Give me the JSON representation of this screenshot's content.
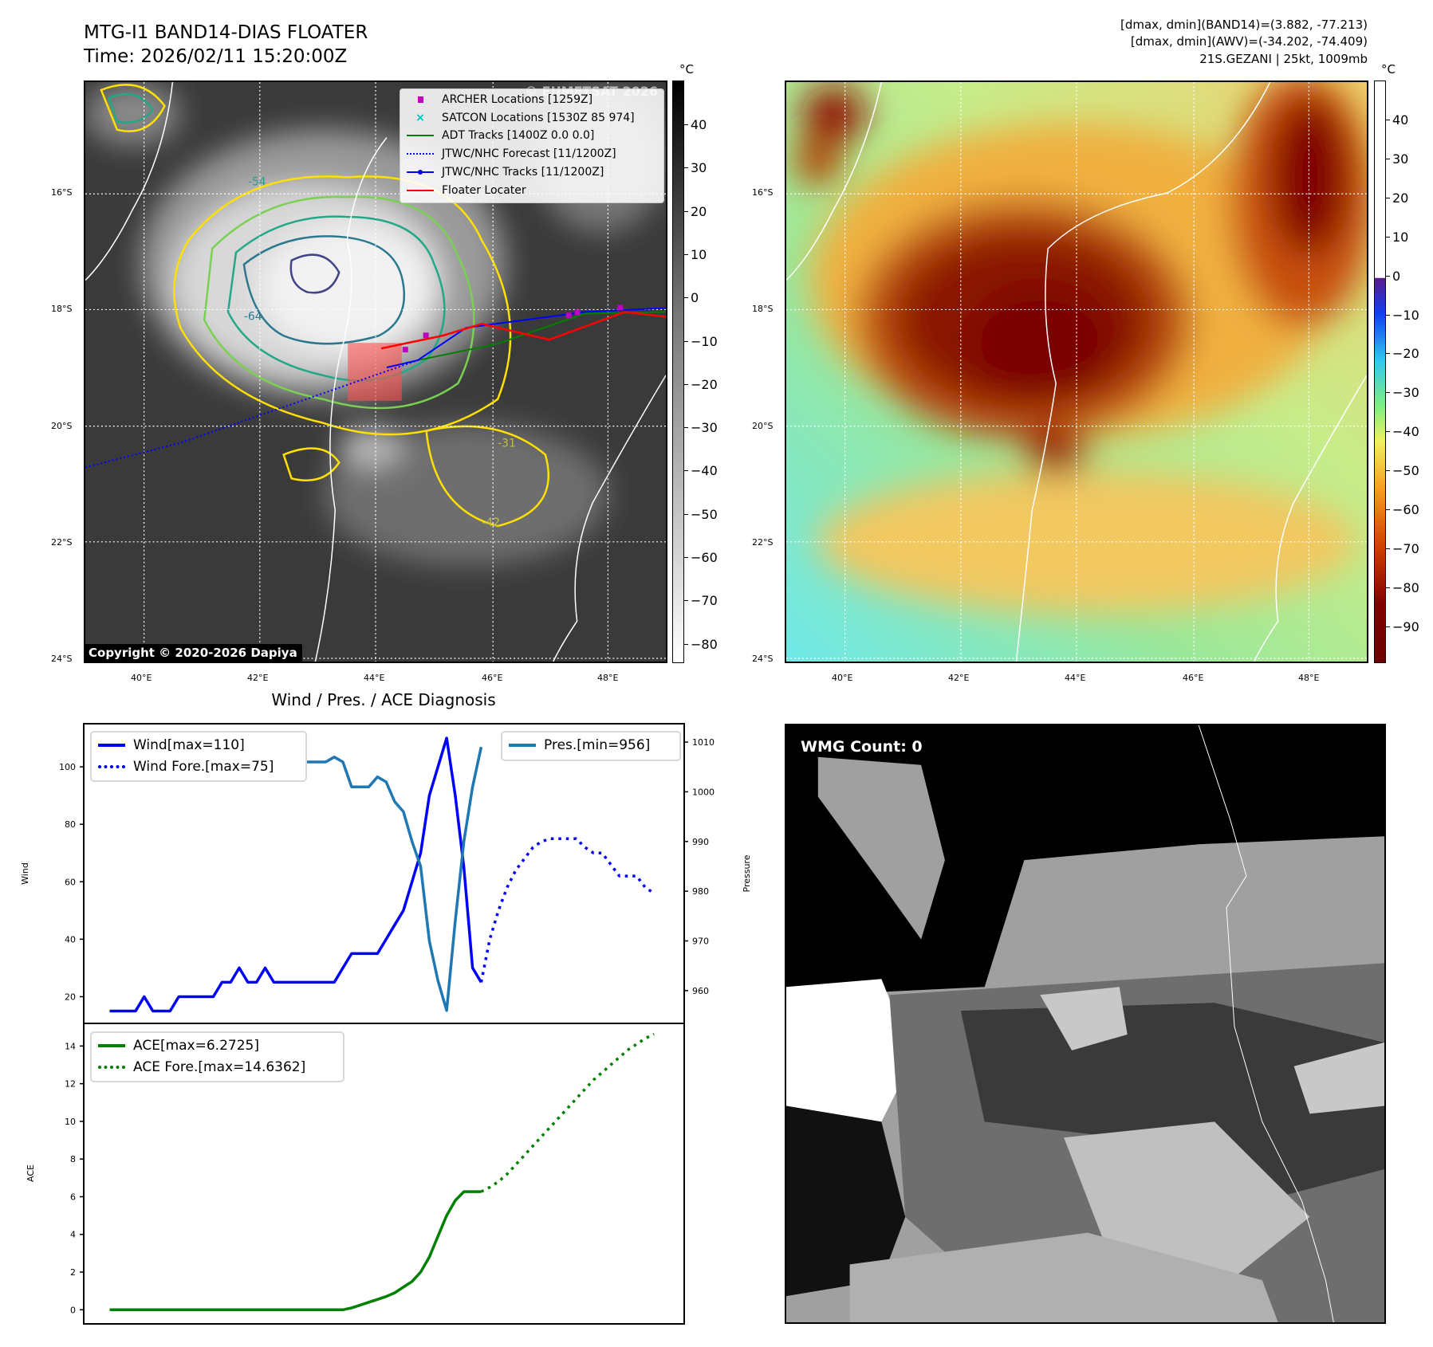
{
  "header": {
    "title_line1": "MTG-I1 BAND14-DIAS FLOATER",
    "title_line2": "Time: 2026/02/11 15:20:00Z",
    "stats_line1": "[dmax, dmin](BAND14)=(3.882, -77.213)",
    "stats_line2": "[dmax, dmin](AWV)=(-34.202, -74.409)",
    "storm_line": "21S.GEZANI | 25kt, 1009mb"
  },
  "map": {
    "lat_labels": [
      "16°S",
      "18°S",
      "20°S",
      "22°S",
      "24°S"
    ],
    "lon_labels": [
      "40°E",
      "42°E",
      "44°E",
      "46°E",
      "48°E"
    ],
    "unit": "°C",
    "watermark": "© EUMETSAT 2026",
    "copyright": "Copyright © 2020-2026 Dapiya",
    "colorbar_left_ticks": [
      "40",
      "30",
      "20",
      "10",
      "0",
      "−10",
      "−20",
      "−30",
      "−40",
      "−50",
      "−60",
      "−70",
      "−80"
    ],
    "colorbar_right_ticks": [
      "40",
      "30",
      "20",
      "10",
      "0",
      "−10",
      "−20",
      "−30",
      "−40",
      "−50",
      "−60",
      "−70",
      "−80",
      "−90"
    ],
    "contour_labels": [
      "-54",
      "-64",
      "-31",
      "-42"
    ],
    "legend": [
      {
        "label": "ARCHER Locations [1259Z]",
        "color": "#c000c0",
        "symbol": "square"
      },
      {
        "label": "SATCON Locations [1530Z 85 974]",
        "color": "#00c0c0",
        "symbol": "x"
      },
      {
        "label": "ADT Tracks [1400Z 0.0 0.0]",
        "color": "#008000",
        "symbol": "line"
      },
      {
        "label": "JTWC/NHC Forecast [11/1200Z]",
        "color": "#0000ff",
        "symbol": "dotted"
      },
      {
        "label": "JTWC/NHC Tracks [11/1200Z]",
        "color": "#0000ff",
        "symbol": "line-dot"
      },
      {
        "label": "Floater Locater",
        "color": "#ff0000",
        "symbol": "line"
      }
    ]
  },
  "wmg": {
    "count_label": "WMG Count: 0"
  },
  "chart_data": [
    {
      "type": "line",
      "title": "Wind / Pres. / ACE Diagnosis",
      "ylabel": "Wind",
      "y2label": "Pressure",
      "xlim": [
        -3,
        66.5
      ],
      "ylim": [
        10.7,
        115
      ],
      "y2lim": [
        953.4,
        1013.7
      ],
      "yticks": [
        20,
        40,
        60,
        80,
        100
      ],
      "y2ticks": [
        960,
        970,
        980,
        990,
        1000,
        1010
      ],
      "legend_left": "top-left",
      "legend_right": "top-right",
      "series": [
        {
          "name": "Wind[max=110]",
          "axis": "left",
          "style": "solid",
          "color": "#0000ff",
          "x_start": 0,
          "values": [
            15,
            15,
            15,
            15,
            20,
            15,
            15,
            15,
            20,
            20,
            20,
            20,
            20,
            25,
            25,
            30,
            25,
            25,
            30,
            25,
            25,
            25,
            25,
            25,
            25,
            25,
            25,
            30,
            35,
            35,
            35,
            35,
            40,
            45,
            50,
            60,
            70,
            90,
            100,
            110,
            90,
            65,
            30,
            25
          ]
        },
        {
          "name": "Wind Fore.[max=75]",
          "axis": "left",
          "style": "dotted",
          "color": "#0000ff",
          "x_start": 43,
          "values": [
            25,
            40,
            50,
            58,
            64,
            68,
            72,
            74,
            75,
            75,
            75,
            75,
            72,
            70,
            70,
            66,
            62,
            62,
            62,
            58,
            56
          ]
        },
        {
          "name": "Pres.[min=956]",
          "axis": "right",
          "style": "solid",
          "color": "#1f77b4",
          "x_start": 0,
          "values": [
            1009,
            1009,
            1011,
            1011,
            1011,
            1011,
            1011,
            1009,
            1007,
            1007,
            1006,
            1006,
            1006,
            1007,
            1005,
            1005,
            1006,
            1008,
            1007,
            1007,
            1006,
            1006,
            1006,
            1006,
            1006,
            1006,
            1007,
            1006,
            1001,
            1001,
            1001,
            1003,
            1002,
            998,
            996,
            990,
            985,
            970,
            962,
            956,
            974,
            990,
            1001,
            1009
          ]
        }
      ]
    },
    {
      "type": "line",
      "ylabel": "ACE",
      "xlim": [
        -3,
        66.5
      ],
      "ylim": [
        -0.75,
        15.2
      ],
      "yticks": [
        0,
        2,
        4,
        6,
        8,
        10,
        12,
        14
      ],
      "legend": "top-left",
      "series": [
        {
          "name": "ACE[max=6.2725]",
          "style": "solid",
          "color": "#008000",
          "x_start": 0,
          "values": [
            0,
            0,
            0,
            0,
            0,
            0,
            0,
            0,
            0,
            0,
            0,
            0,
            0,
            0,
            0,
            0,
            0,
            0,
            0,
            0,
            0,
            0,
            0,
            0,
            0,
            0,
            0,
            0,
            0.1,
            0.25,
            0.4,
            0.55,
            0.7,
            0.9,
            1.2,
            1.5,
            2.0,
            2.8,
            3.9,
            5.0,
            5.8,
            6.27,
            6.27,
            6.27
          ]
        },
        {
          "name": "ACE Fore.[max=14.6362]",
          "style": "dotted",
          "color": "#008000",
          "x_start": 43,
          "values": [
            6.27,
            6.5,
            6.8,
            7.2,
            7.7,
            8.2,
            8.7,
            9.2,
            9.7,
            10.2,
            10.7,
            11.2,
            11.7,
            12.2,
            12.6,
            13.0,
            13.4,
            13.8,
            14.1,
            14.4,
            14.64
          ]
        }
      ]
    }
  ]
}
